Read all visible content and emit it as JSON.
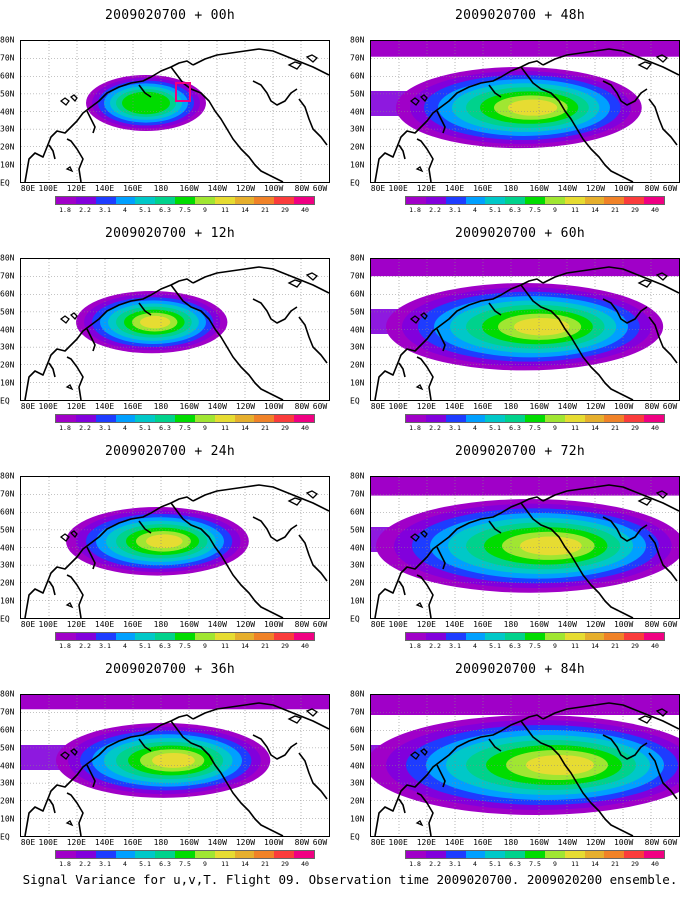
{
  "caption": "Signal Variance for u,v,T. Flight 09. Observation time 2009020700. 2009020200 ensemble.",
  "lat_labels": [
    "80N",
    "70N",
    "60N",
    "50N",
    "40N",
    "30N",
    "20N",
    "10N",
    "EQ"
  ],
  "lon_labels": [
    "80E",
    "100E",
    "120E",
    "140E",
    "160E",
    "180",
    "160W",
    "140W",
    "120W",
    "100W",
    "80W",
    "60W"
  ],
  "colorbar": {
    "labels": [
      "1.8",
      "2.2",
      "3.1",
      "4",
      "5.1",
      "6.3",
      "7.5",
      "9",
      "11",
      "14",
      "21",
      "29",
      "40"
    ],
    "colors": [
      "#a000c8",
      "#8200dc",
      "#1e3cff",
      "#00a0ff",
      "#00c8c8",
      "#00d28c",
      "#00dc00",
      "#a0e632",
      "#e6dc32",
      "#e6af2d",
      "#f08228",
      "#fa3c3c",
      "#f00082"
    ]
  },
  "panels": [
    {
      "title": "2009020700 + 00h",
      "lead_hours": 0
    },
    {
      "title": "2009020700 + 48h",
      "lead_hours": 48
    },
    {
      "title": "2009020700 + 12h",
      "lead_hours": 12
    },
    {
      "title": "2009020700 + 60h",
      "lead_hours": 60
    },
    {
      "title": "2009020700 + 24h",
      "lead_hours": 24
    },
    {
      "title": "2009020700 + 72h",
      "lead_hours": 72
    },
    {
      "title": "2009020700 + 36h",
      "lead_hours": 36
    },
    {
      "title": "2009020700 + 84h",
      "lead_hours": 84
    }
  ]
}
